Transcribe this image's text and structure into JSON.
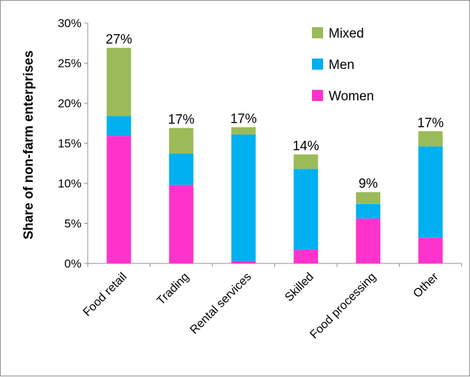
{
  "chart_data": {
    "type": "bar",
    "stacked": true,
    "title": "",
    "xlabel": "",
    "ylabel": "Share of non-farm enterprises",
    "ylim": [
      0,
      30
    ],
    "yticks": [
      "0%",
      "5%",
      "10%",
      "15%",
      "20%",
      "25%",
      "30%"
    ],
    "ytick_values": [
      0,
      5,
      10,
      15,
      20,
      25,
      30
    ],
    "categories": [
      "Food retail",
      "Trading",
      "Rental services",
      "Skilled",
      "Food processing",
      "Other"
    ],
    "totals_labels": [
      "27%",
      "17%",
      "17%",
      "14%",
      "9%",
      "17%"
    ],
    "series": [
      {
        "name": "Women",
        "color": "#ff33cc",
        "values": [
          15.9,
          9.8,
          0.3,
          1.7,
          5.6,
          3.2
        ]
      },
      {
        "name": "Men",
        "color": "#00b0f0",
        "values": [
          2.5,
          3.9,
          15.8,
          10.1,
          1.8,
          11.4
        ]
      },
      {
        "name": "Mixed",
        "color": "#9bbb59",
        "values": [
          8.5,
          3.2,
          0.9,
          1.8,
          1.5,
          1.9
        ]
      }
    ],
    "legend": {
      "position": "top-right",
      "order": [
        "Mixed",
        "Men",
        "Women"
      ]
    },
    "grid": false
  }
}
